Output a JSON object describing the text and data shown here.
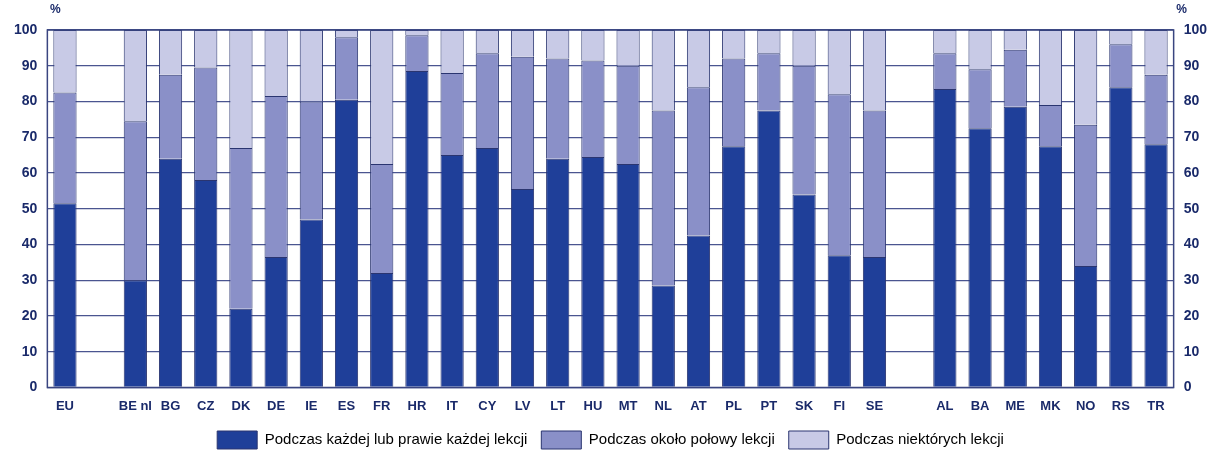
{
  "chart_data": {
    "type": "bar",
    "stacked": true,
    "ylabel": "%",
    "y2label": "%",
    "categories": [
      "EU",
      null,
      "BE nl",
      "BG",
      "CZ",
      "DK",
      "DE",
      "IE",
      "ES",
      "FR",
      "HR",
      "IT",
      "CY",
      "LV",
      "LT",
      "HU",
      "MT",
      "NL",
      "AT",
      "PL",
      "PT",
      "SK",
      "FI",
      "SE",
      null,
      "AL",
      "BA",
      "ME",
      "MK",
      "NO",
      "RS",
      "TR"
    ],
    "series": [
      {
        "name": "Podczas każdej lub prawie każdej lekcji",
        "color": "#1f3f99",
        "values": [
          51.5,
          null,
          30,
          64,
          58,
          22,
          36.5,
          47,
          80.5,
          32,
          88.5,
          65,
          67,
          55.5,
          64,
          64.5,
          62.5,
          28.5,
          42.5,
          67.5,
          77.5,
          54,
          37,
          36.5,
          null,
          83.5,
          72.5,
          78.5,
          67.5,
          34,
          84,
          68
        ]
      },
      {
        "name": "Podczas około połowy lekcji",
        "color": "#8a90c8",
        "values": [
          31,
          null,
          44.5,
          23.5,
          31.5,
          45,
          45,
          33,
          17.5,
          30.5,
          10,
          23,
          26.5,
          37,
          28,
          27,
          27.5,
          49,
          41.5,
          24.5,
          16,
          36,
          45,
          41,
          null,
          10,
          16.5,
          16,
          11.5,
          39.5,
          12,
          19.5
        ]
      },
      {
        "name": "Podczas niektórych lekcji",
        "color": "#c8cae6",
        "values": [
          17.5,
          null,
          25.5,
          12.5,
          10.5,
          33,
          18.5,
          20,
          2,
          37.5,
          1.5,
          12,
          6.5,
          7.5,
          8,
          8.5,
          10,
          22.5,
          16,
          8,
          6.5,
          10,
          18,
          22.5,
          null,
          6.5,
          11,
          5.5,
          21,
          26.5,
          4,
          12.5
        ]
      }
    ],
    "ylim": [
      0,
      100
    ],
    "yticks": [
      0,
      10,
      20,
      30,
      40,
      50,
      60,
      70,
      80,
      90,
      100
    ],
    "y2lim": [
      0,
      100
    ],
    "y2ticks": [
      0,
      10,
      20,
      30,
      40,
      50,
      60,
      70,
      80,
      90,
      100
    ],
    "grid": "y",
    "legend": "bottom"
  }
}
